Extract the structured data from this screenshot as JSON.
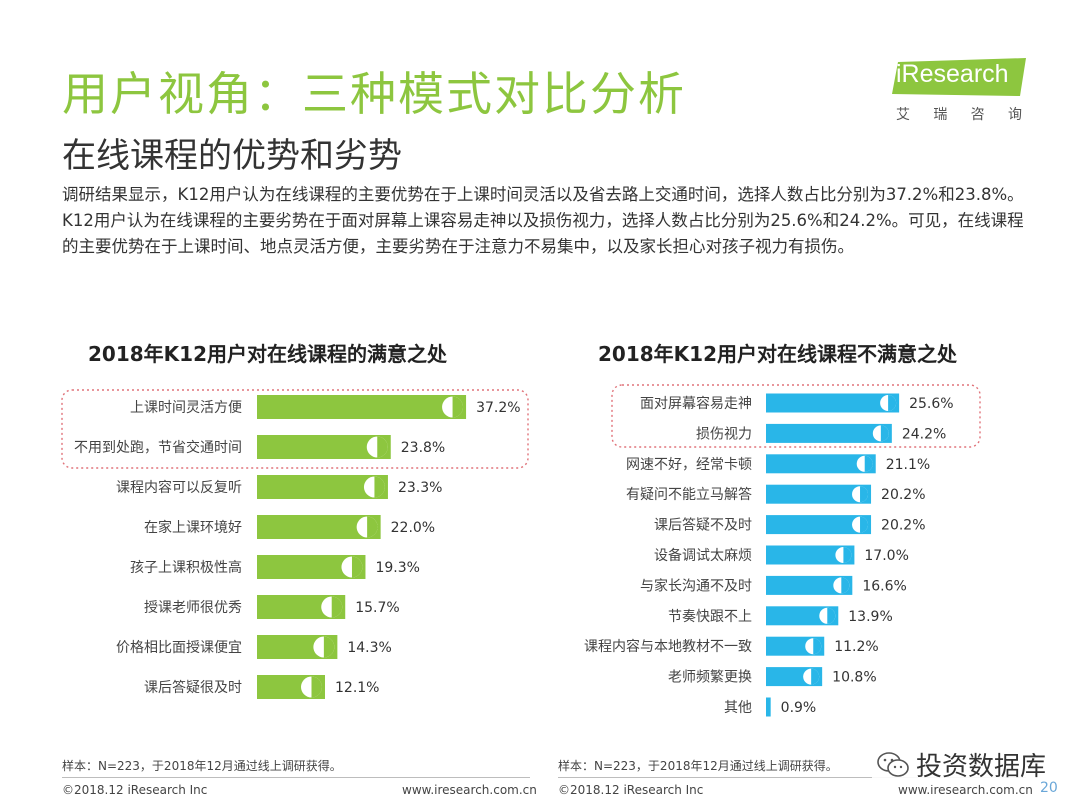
{
  "header": {
    "title": "用户视角：三种模式对比分析",
    "subtitle": "在线课程的优势和劣势",
    "logo_text": "iResearch",
    "logo_cn": [
      "艾",
      "瑞",
      "咨",
      "询"
    ]
  },
  "body_text": "调研结果显示，K12用户认为在线课程的主要优势在于上课时间灵活以及省去路上交通时间，选择人数占比分别为37.2%和23.8%。K12用户认为在线课程的主要劣势在于面对屏幕上课容易走神以及损伤视力，选择人数占比分别为25.6%和24.2%。可见，在线课程的主要优势在于上课时间、地点灵活方便，主要劣势在于注意力不易集中，以及家长担心对孩子视力有损伤。",
  "colors": {
    "title_green": "#8dc63f",
    "left_bar": "#8dc63f",
    "right_bar": "#29b6e8",
    "highlight_border": "#e0737a"
  },
  "chart_data": [
    {
      "type": "bar",
      "orientation": "horizontal",
      "title": "2018年K12用户对在线课程的满意之处",
      "categories": [
        "上课时间灵活方便",
        "不用到处跑，节省交通时间",
        "课程内容可以反复听",
        "在家上课环境好",
        "孩子上课积极性高",
        "授课老师很优秀",
        "价格相比面授课便宜",
        "课后答疑很及时"
      ],
      "values": [
        37.2,
        23.8,
        23.3,
        22.0,
        19.3,
        15.7,
        14.3,
        12.1
      ],
      "labels": [
        "37.2%",
        "23.8%",
        "23.3%",
        "22.0%",
        "19.3%",
        "15.7%",
        "14.3%",
        "12.1%"
      ],
      "unit": "%",
      "highlighted": [
        0,
        1
      ],
      "footnote": "样本：N=223，于2018年12月通过线上调研获得。",
      "copyright": "©2018.12 iResearch Inc",
      "website": "www.iresearch.com.cn"
    },
    {
      "type": "bar",
      "orientation": "horizontal",
      "title": "2018年K12用户对在线课程不满意之处",
      "categories": [
        "面对屏幕容易走神",
        "损伤视力",
        "网速不好，经常卡顿",
        "有疑问不能立马解答",
        "课后答疑不及时",
        "设备调试太麻烦",
        "与家长沟通不及时",
        "节奏快跟不上",
        "课程内容与本地教材不一致",
        "老师频繁更换",
        "其他"
      ],
      "values": [
        25.6,
        24.2,
        21.1,
        20.2,
        20.2,
        17.0,
        16.6,
        13.9,
        11.2,
        10.8,
        0.9
      ],
      "labels": [
        "25.6%",
        "24.2%",
        "21.1%",
        "20.2%",
        "20.2%",
        "17.0%",
        "16.6%",
        "13.9%",
        "11.2%",
        "10.8%",
        "0.9%"
      ],
      "unit": "%",
      "highlighted": [
        0,
        1
      ],
      "footnote": "样本：N=223，于2018年12月通过线上调研获得。",
      "copyright": "©2018.12 iResearch Inc",
      "website": "www.iresearch.com.cn"
    }
  ],
  "watermark": {
    "text": "投资数据库",
    "page": "20"
  }
}
